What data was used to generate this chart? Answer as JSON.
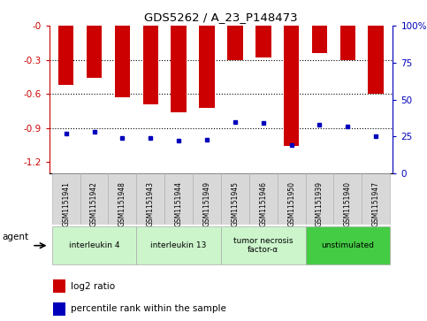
{
  "title": "GDS5262 / A_23_P148473",
  "samples": [
    "GSM1151941",
    "GSM1151942",
    "GSM1151948",
    "GSM1151943",
    "GSM1151944",
    "GSM1151949",
    "GSM1151945",
    "GSM1151946",
    "GSM1151950",
    "GSM1151939",
    "GSM1151940",
    "GSM1151947"
  ],
  "log2_ratios": [
    -0.52,
    -0.46,
    -0.63,
    -0.69,
    -0.76,
    -0.72,
    -0.3,
    -0.28,
    -1.06,
    -0.24,
    -0.3,
    -0.6
  ],
  "percentile_ranks": [
    27,
    28,
    24,
    24,
    22,
    23,
    35,
    34,
    19,
    33,
    32,
    25
  ],
  "groups": [
    {
      "label": "interleukin 4",
      "start": 0,
      "end": 3
    },
    {
      "label": "interleukin 13",
      "start": 3,
      "end": 6
    },
    {
      "label": "tumor necrosis\nfactor-α",
      "start": 6,
      "end": 9
    },
    {
      "label": "unstimulated",
      "start": 9,
      "end": 12
    }
  ],
  "bar_color": "#cc0000",
  "dot_color": "#0000bb",
  "left_axis_color": "#cc0000",
  "right_axis_color": "#0000bb",
  "ylim_left": [
    -1.3,
    0.0
  ],
  "ylim_right": [
    0,
    100
  ],
  "yticks_left": [
    0,
    -0.3,
    -0.6,
    -0.9,
    -1.2
  ],
  "ytick_labels_left": [
    "-0",
    "-0.3",
    "-0.6",
    "-0.9",
    "-1.2"
  ],
  "yticks_right": [
    0,
    25,
    50,
    75,
    100
  ],
  "background_color": "#ffffff",
  "bar_width": 0.55,
  "light_green": "#ccf5cc",
  "dark_green": "#44cc44",
  "group_border": "#aaaaaa"
}
